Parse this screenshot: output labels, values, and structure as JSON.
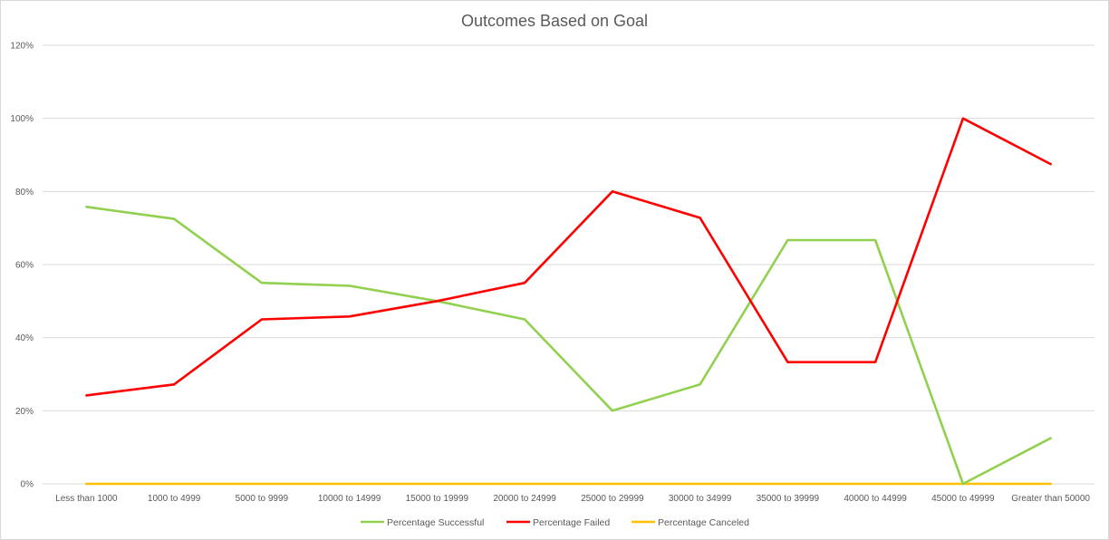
{
  "chart_data": {
    "type": "line",
    "title": "Outcomes Based on Goal",
    "categories": [
      "Less than 1000",
      "1000 to 4999",
      "5000 to 9999",
      "10000 to 14999",
      "15000 to 19999",
      "20000 to 24999",
      "25000 to 29999",
      "30000 to 34999",
      "35000 to 39999",
      "40000 to 44999",
      "45000 to 49999",
      "Greater than 50000"
    ],
    "y_ticks": [
      "0%",
      "20%",
      "40%",
      "60%",
      "80%",
      "100%",
      "120%"
    ],
    "ylim": [
      0,
      1.2
    ],
    "grid": true,
    "legend_position": "bottom",
    "series": [
      {
        "name": "Percentage Successful",
        "color": "#92d050",
        "values": [
          0.758,
          0.725,
          0.55,
          0.542,
          0.5,
          0.45,
          0.2,
          0.272,
          0.667,
          0.667,
          0.0,
          0.125
        ]
      },
      {
        "name": "Percentage Failed",
        "color": "#ff0000",
        "values": [
          0.242,
          0.272,
          0.45,
          0.458,
          0.5,
          0.55,
          0.8,
          0.728,
          0.333,
          0.333,
          1.0,
          0.875
        ]
      },
      {
        "name": "Percentage Canceled",
        "color": "#ffc000",
        "values": [
          0,
          0,
          0,
          0,
          0,
          0,
          0,
          0,
          0,
          0,
          0,
          0
        ]
      }
    ]
  }
}
